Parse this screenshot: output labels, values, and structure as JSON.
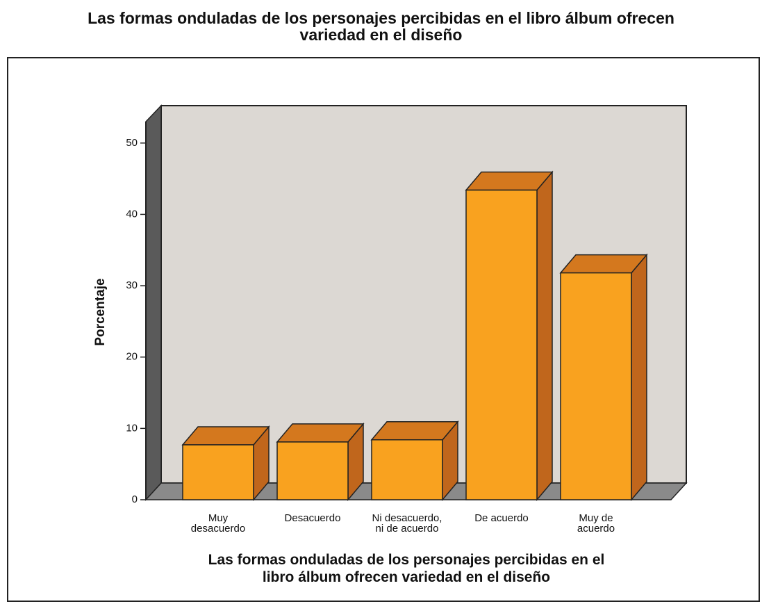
{
  "chart_data": {
    "type": "bar3d",
    "title": "Las formas onduladas de los personajes percibidas en el libro álbum ofrecen\nvariedad en el diseño",
    "x_label": "Las formas onduladas de los personajes percibidas en el\nlibro álbum ofrecen variedad en el diseño",
    "y_label": "Porcentaje",
    "categories": [
      "Muy\ndesacuerdo",
      "Desacuerdo",
      "Ni desacuerdo,\nni de acuerdo",
      "De acuerdo",
      "Muy de\nacuerdo"
    ],
    "values": [
      7.7,
      8.1,
      8.4,
      43.4,
      31.8
    ],
    "color": "#f9a21f",
    "ylim": [
      0,
      53
    ],
    "yticks": [
      0,
      10,
      20,
      30,
      40,
      50
    ]
  }
}
